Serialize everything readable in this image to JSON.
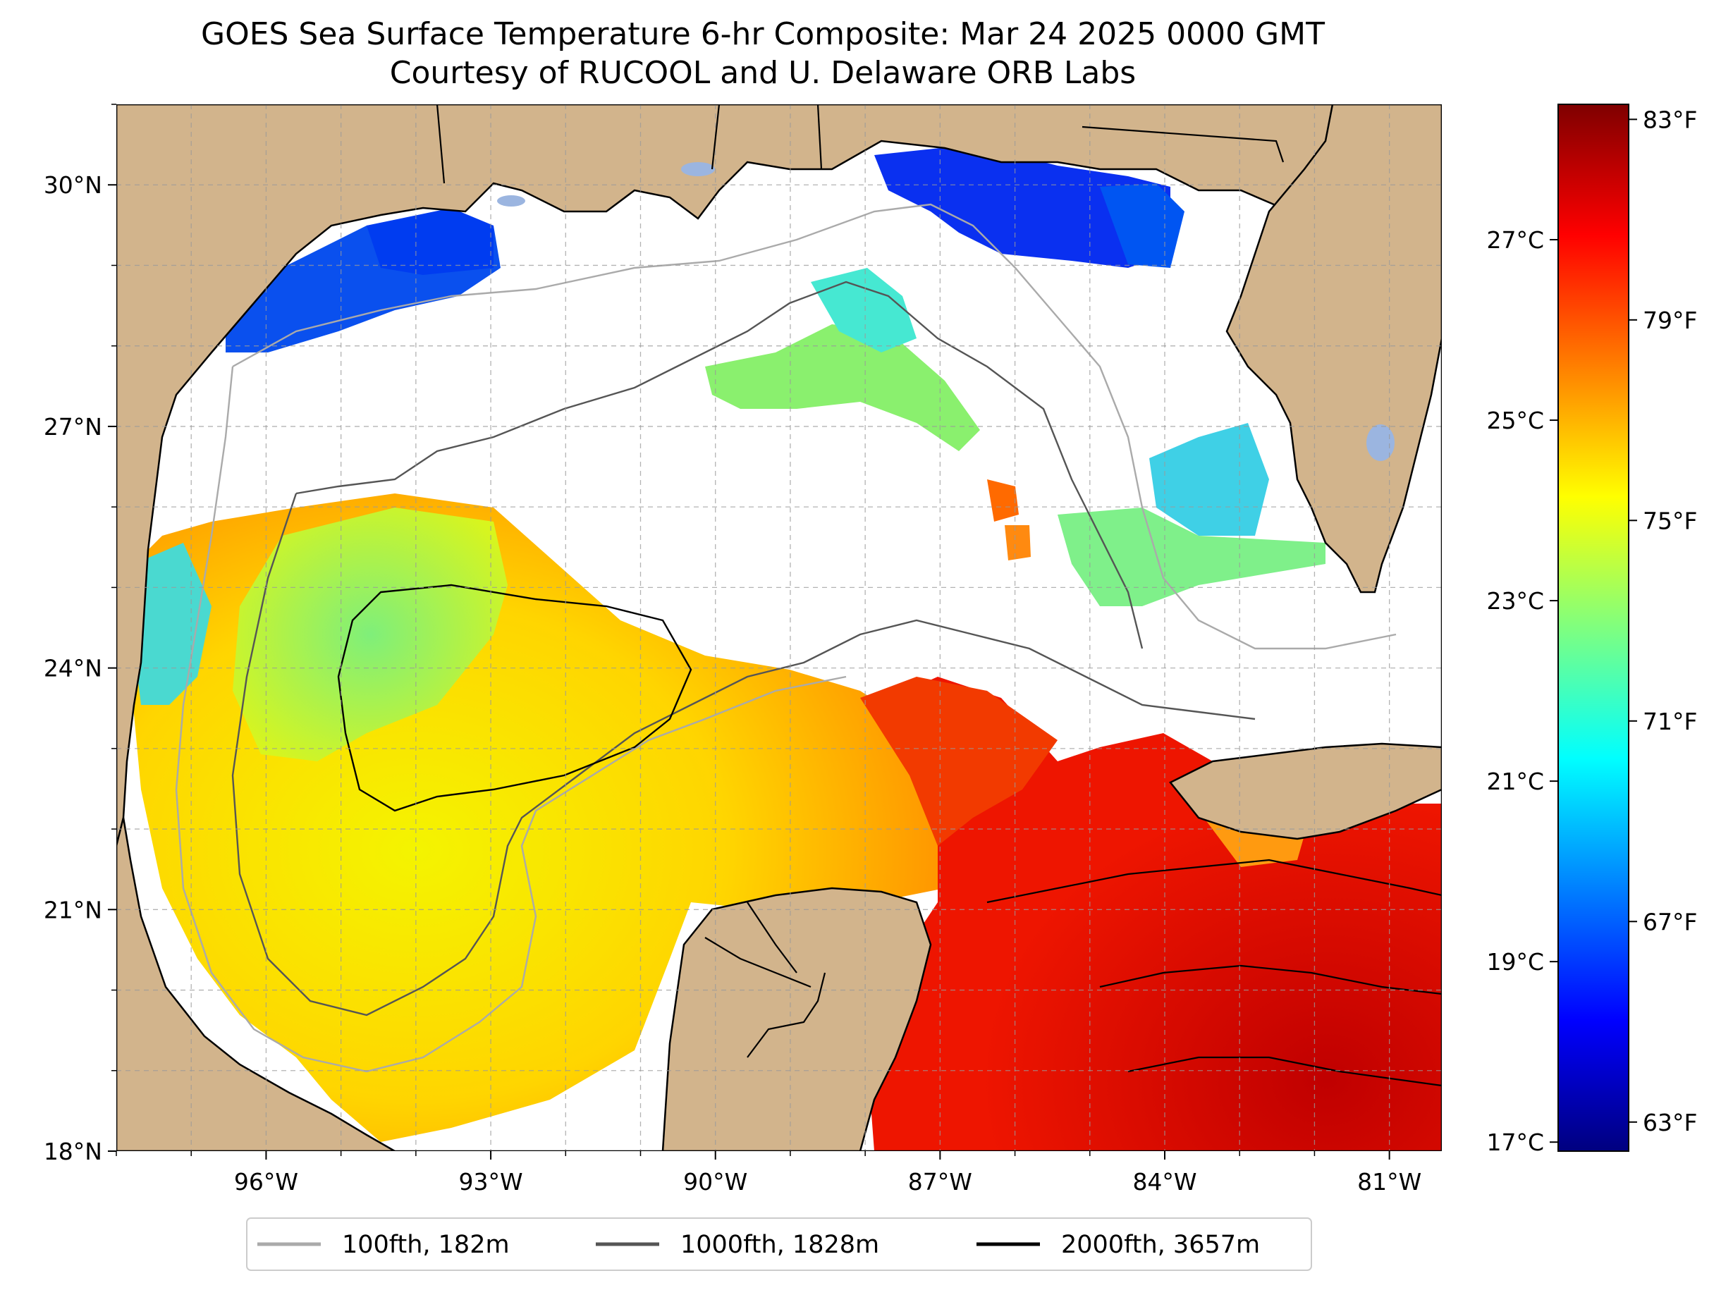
{
  "title": {
    "line1": "GOES Sea Surface Temperature 6-hr Composite: Mar 24 2025 0000 GMT",
    "line2": "Courtesy of RUCOOL and U. Delaware ORB Labs"
  },
  "map": {
    "extent": {
      "lon": [
        -98.0,
        -80.3
      ],
      "lat": [
        18.0,
        31.0
      ]
    },
    "lat_ticks": [
      {
        "value": 30,
        "label": "30°N"
      },
      {
        "value": 27,
        "label": "27°N"
      },
      {
        "value": 24,
        "label": "24°N"
      },
      {
        "value": 21,
        "label": "21°N"
      },
      {
        "value": 18,
        "label": "18°N"
      }
    ],
    "lon_ticks": [
      {
        "value": -96,
        "label": "96°W"
      },
      {
        "value": -93,
        "label": "93°W"
      },
      {
        "value": -90,
        "label": "90°W"
      },
      {
        "value": -87,
        "label": "87°W"
      },
      {
        "value": -84,
        "label": "84°W"
      },
      {
        "value": -81,
        "label": "81°W"
      }
    ],
    "colors": {
      "land": "#d2b48c",
      "lakes": "#9bb5e0",
      "no_data": "#ffffff"
    }
  },
  "colorbar": {
    "celsius_range": [
      16.9,
      28.5
    ],
    "celsius_ticks": [
      {
        "value": 27,
        "label": "27°C"
      },
      {
        "value": 25,
        "label": "25°C"
      },
      {
        "value": 23,
        "label": "23°C"
      },
      {
        "value": 21,
        "label": "21°C"
      },
      {
        "value": 19,
        "label": "19°C"
      },
      {
        "value": 17,
        "label": "17°C"
      }
    ],
    "fahrenheit_ticks": [
      {
        "value": 83,
        "label": "83°F"
      },
      {
        "value": 79,
        "label": "79°F"
      },
      {
        "value": 75,
        "label": "75°F"
      },
      {
        "value": 71,
        "label": "71°F"
      },
      {
        "value": 67,
        "label": "67°F"
      },
      {
        "value": 63,
        "label": "63°F"
      }
    ],
    "colormap": [
      "#00007f",
      "#0000ff",
      "#007fff",
      "#00ffff",
      "#7fff7f",
      "#ffff00",
      "#ff7f00",
      "#ff0000",
      "#7f0000"
    ]
  },
  "legend": [
    {
      "label": "100fth, 182m",
      "color": "#aaaaaa"
    },
    {
      "label": "1000fth, 1828m",
      "color": "#555555"
    },
    {
      "label": "2000fth, 3657m",
      "color": "#000000"
    }
  ]
}
